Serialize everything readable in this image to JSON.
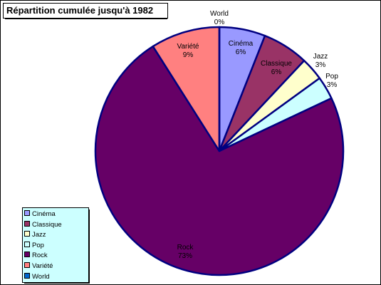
{
  "chart_data": {
    "type": "pie",
    "title": "Répartition cumulée jusqu'à 1982",
    "legend_position": "bottom-left",
    "slices": [
      {
        "label": "Cinéma",
        "percent_label": "6%",
        "value": 6,
        "color": "#9999ff"
      },
      {
        "label": "Classique",
        "percent_label": "6%",
        "value": 6,
        "color": "#993366"
      },
      {
        "label": "Jazz",
        "percent_label": "3%",
        "value": 3,
        "color": "#ffffcc"
      },
      {
        "label": "Pop",
        "percent_label": "3%",
        "value": 3,
        "color": "#ccffff"
      },
      {
        "label": "Rock",
        "percent_label": "73%",
        "value": 73,
        "color": "#660066"
      },
      {
        "label": "Variété",
        "percent_label": "9%",
        "value": 9,
        "color": "#ff8080"
      },
      {
        "label": "World",
        "percent_label": "0%",
        "value": 0,
        "color": "#0066cc"
      }
    ],
    "legend": [
      "Cinéma",
      "Classique",
      "Jazz",
      "Pop",
      "Rock",
      "Variété",
      "World"
    ]
  },
  "colors": {
    "border": "#000080",
    "legend_bg": "#ccffff"
  }
}
